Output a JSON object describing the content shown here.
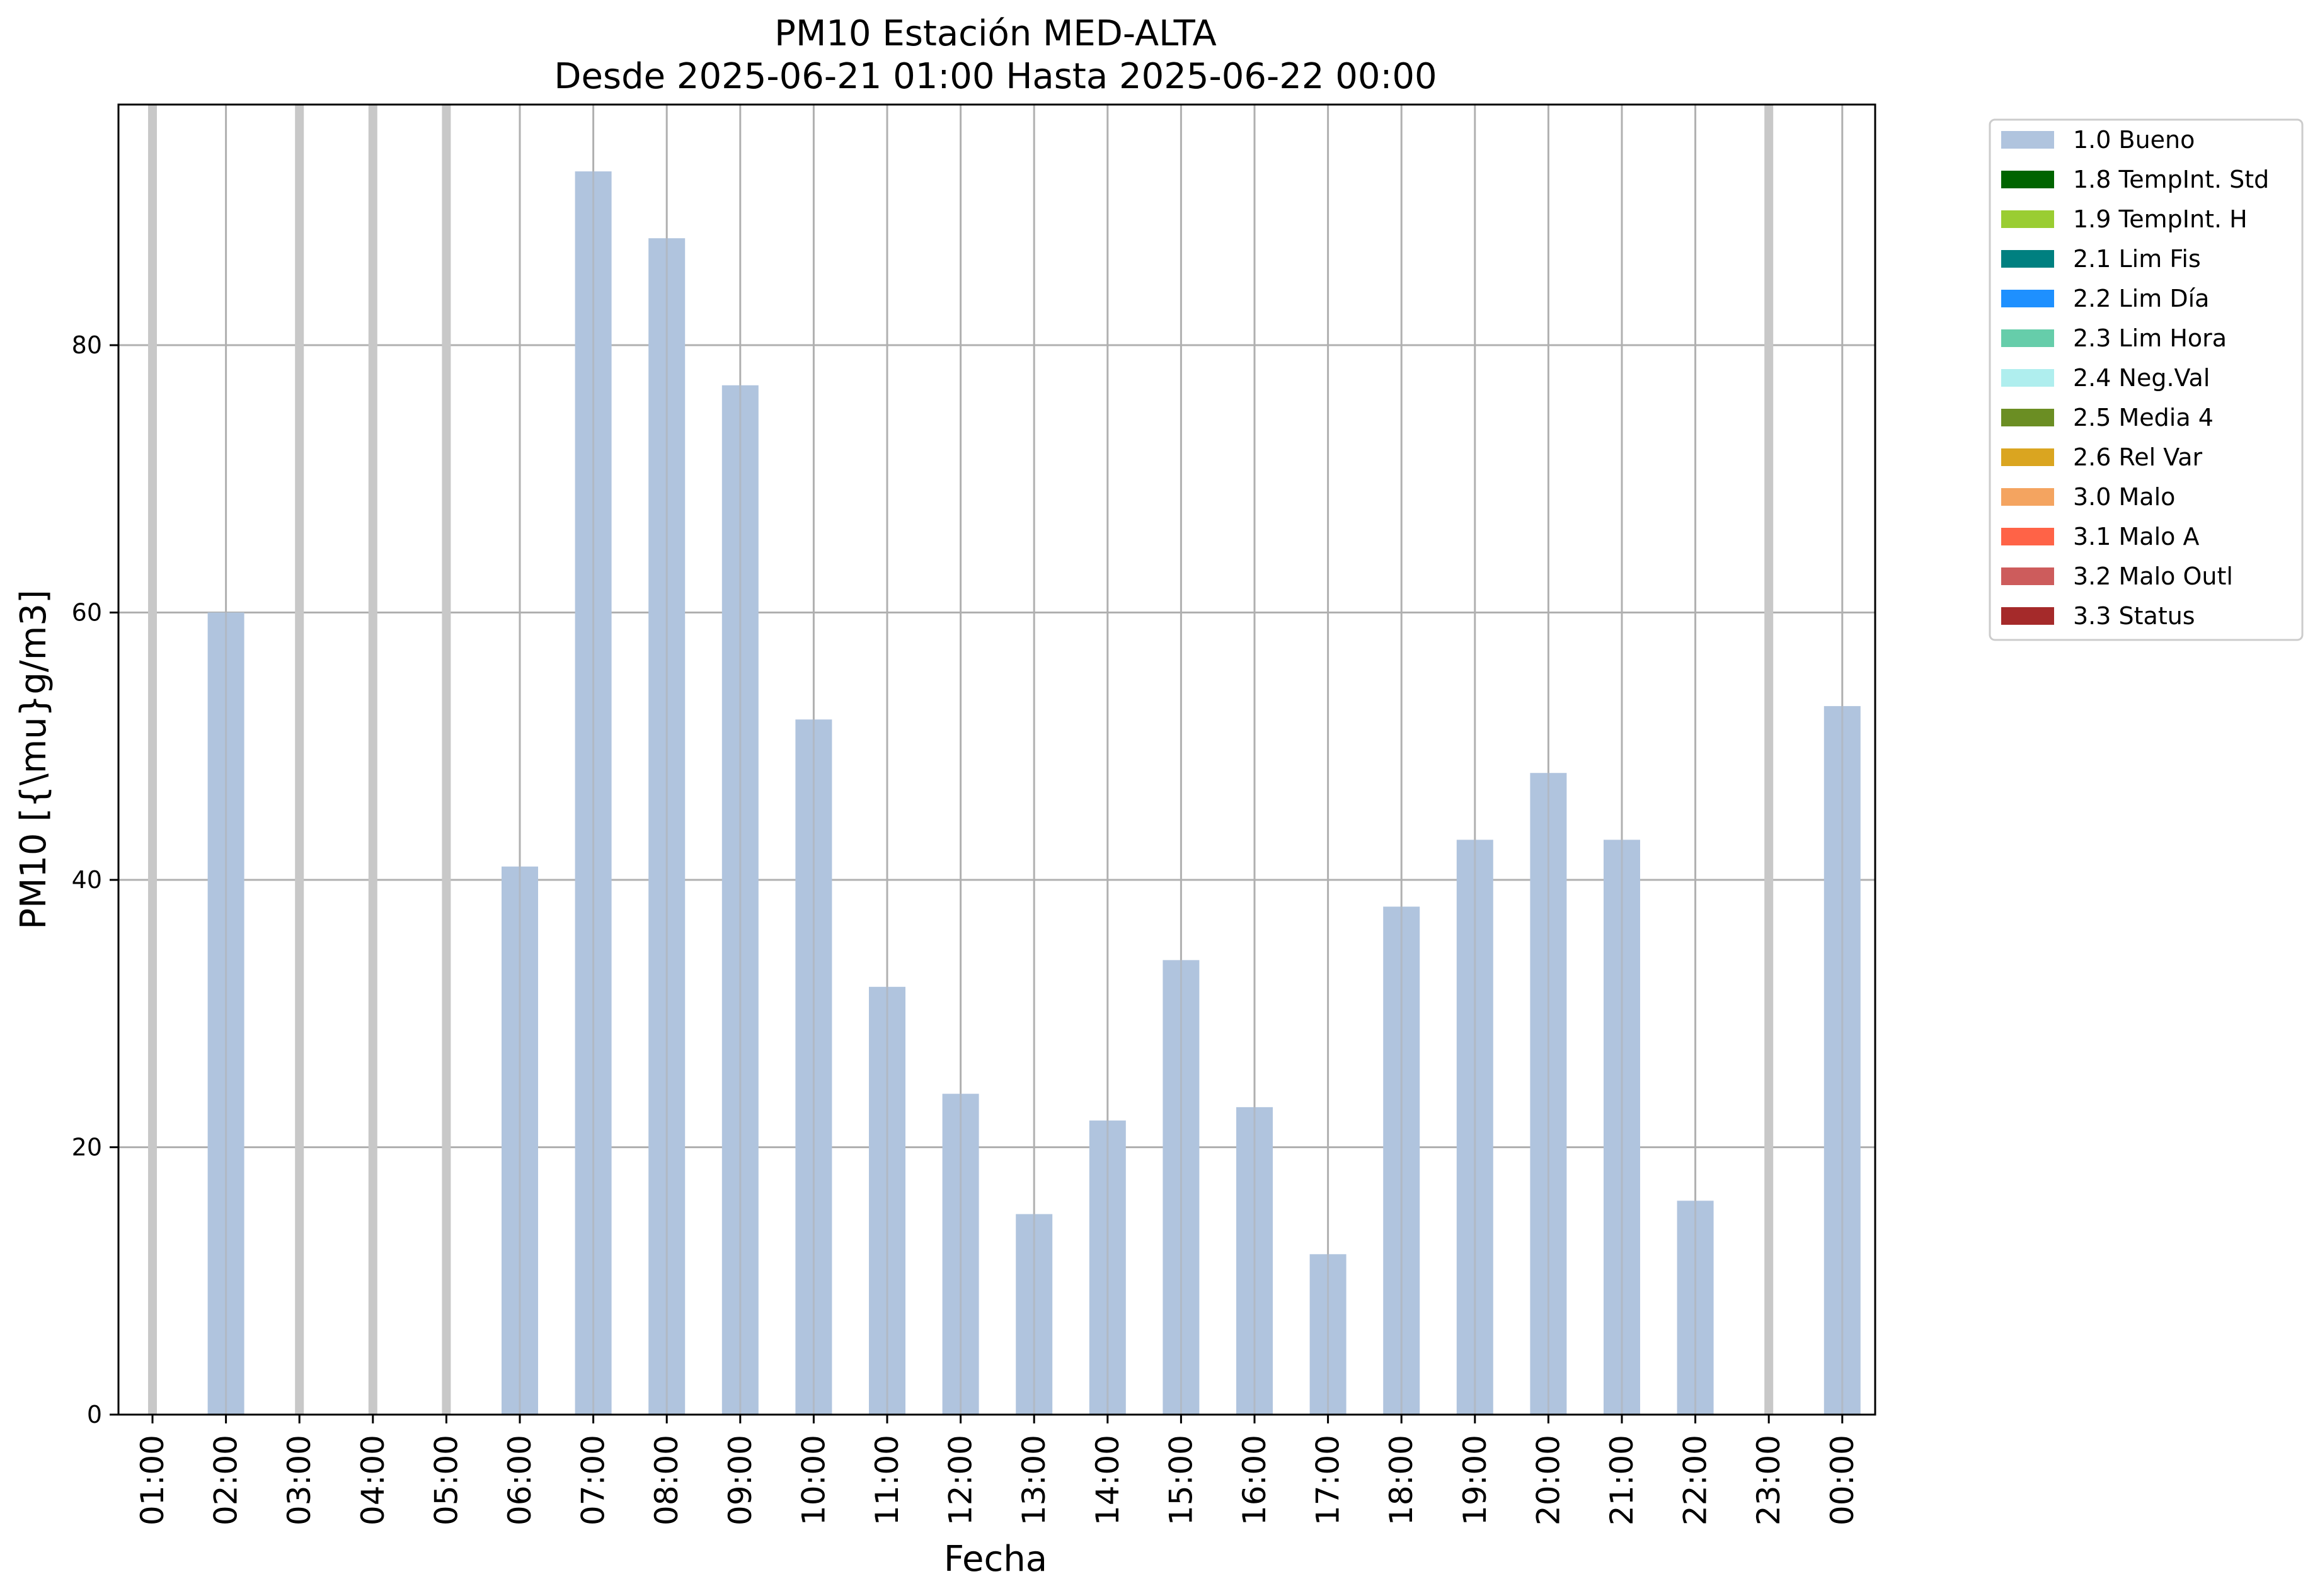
{
  "chart_data": {
    "type": "bar",
    "title": "PM10 Estación MED-ALTA",
    "subtitle": "Desde 2025-06-21 01:00 Hasta 2025-06-22 00:00",
    "xlabel": "Fecha",
    "ylabel": "PM10 [{\\mu}g/m3]",
    "ylim": [
      0,
      98
    ],
    "yticks": [
      0,
      20,
      40,
      60,
      80
    ],
    "grid": true,
    "legend_position": "outside-right",
    "categories": [
      "01:00",
      "02:00",
      "03:00",
      "04:00",
      "05:00",
      "06:00",
      "07:00",
      "08:00",
      "09:00",
      "10:00",
      "11:00",
      "12:00",
      "13:00",
      "14:00",
      "15:00",
      "16:00",
      "17:00",
      "18:00",
      "19:00",
      "20:00",
      "21:00",
      "22:00",
      "23:00",
      "00:00"
    ],
    "series": [
      {
        "name": "1.0 Bueno",
        "color": "#b0c4de",
        "values": [
          null,
          60,
          null,
          null,
          null,
          41,
          93,
          88,
          77,
          52,
          32,
          24,
          15,
          22,
          34,
          23,
          12,
          38,
          43,
          48,
          43,
          16,
          null,
          53
        ]
      }
    ],
    "missing_marker_color": "#c8c8c8",
    "legend": [
      {
        "label": "1.0 Bueno",
        "color": "#b0c4de"
      },
      {
        "label": "1.8 TempInt. Std",
        "color": "#006400"
      },
      {
        "label": "1.9 TempInt. H",
        "color": "#9acd32"
      },
      {
        "label": "2.1 Lim Fis",
        "color": "#008080"
      },
      {
        "label": "2.2 Lim Día",
        "color": "#1e90ff"
      },
      {
        "label": "2.3 Lim Hora",
        "color": "#66cdaa"
      },
      {
        "label": "2.4 Neg.Val",
        "color": "#afeeee"
      },
      {
        "label": "2.5 Media 4",
        "color": "#6b8e23"
      },
      {
        "label": "2.6 Rel Var",
        "color": "#daa520"
      },
      {
        "label": "3.0 Malo",
        "color": "#f4a460"
      },
      {
        "label": "3.1 Malo A",
        "color": "#ff6347"
      },
      {
        "label": "3.2 Malo Outl",
        "color": "#cd5c5c"
      },
      {
        "label": "3.3 Status",
        "color": "#a52a2a"
      }
    ]
  }
}
